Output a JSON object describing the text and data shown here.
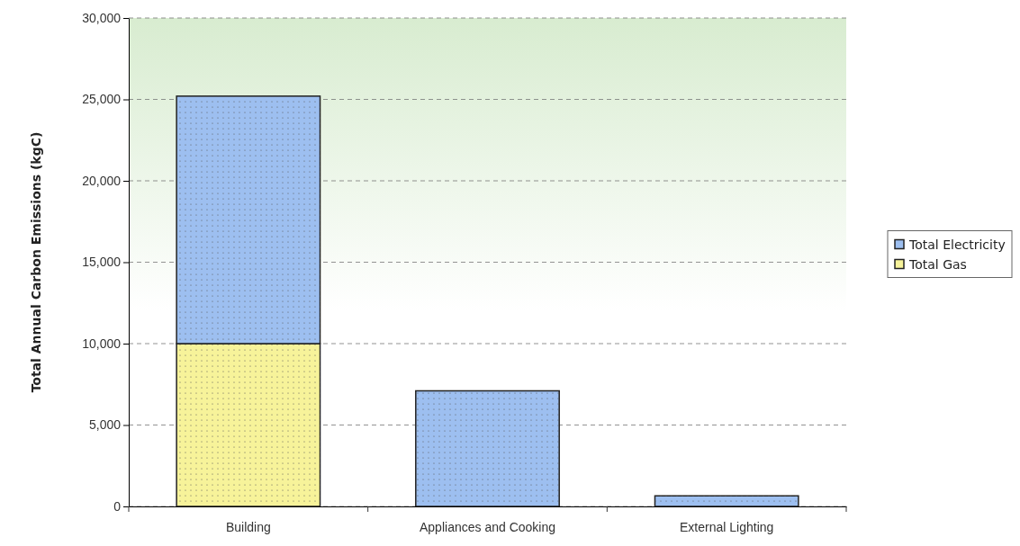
{
  "chart_data": {
    "type": "bar",
    "ylabel": "Total Annual Carbon Emissions (kgC)",
    "categories": [
      "Building",
      "Appliances and Cooking",
      "External Lighting"
    ],
    "stacked": true,
    "series": [
      {
        "name": "Total Gas",
        "color": "#f7f39a",
        "values": [
          10000,
          0,
          0
        ]
      },
      {
        "name": "Total Electricity",
        "color": "#9dbff0",
        "values": [
          15200,
          7100,
          650
        ]
      }
    ],
    "ylim": [
      0,
      30000
    ],
    "yticks": [
      {
        "value": 0,
        "label": "0"
      },
      {
        "value": 5000,
        "label": "5,000"
      },
      {
        "value": 10000,
        "label": "10,000"
      },
      {
        "value": 15000,
        "label": "15,000"
      },
      {
        "value": 20000,
        "label": "20,000"
      },
      {
        "value": 25000,
        "label": "25,000"
      },
      {
        "value": 30000,
        "label": "30,000"
      }
    ],
    "grid": "y",
    "legend": "right"
  }
}
